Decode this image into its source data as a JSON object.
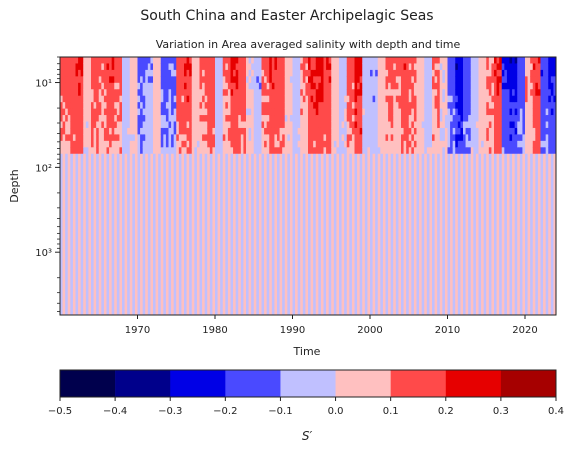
{
  "figure": {
    "suptitle": "South China and Easter Archipelagic Seas",
    "title": "Variation in Area averaged salinity with depth and time"
  },
  "chart_data": {
    "type": "heatmap",
    "title": "Variation in Area averaged salinity with depth and time",
    "xlabel": "Time",
    "ylabel": "Depth",
    "x_ticks": [
      1970,
      1980,
      1990,
      2000,
      2010,
      2020
    ],
    "xlim": [
      1960,
      2024
    ],
    "y_scale": "log",
    "y_inverted": true,
    "y_ticks": [
      10,
      100,
      1000
    ],
    "y_tick_labels": [
      "10¹",
      "10²",
      "10³"
    ],
    "ylim": [
      5,
      5500
    ],
    "colorbar": {
      "label": "S′",
      "boundaries": [
        -0.5,
        -0.4,
        -0.3,
        -0.2,
        -0.1,
        0.0,
        0.1,
        0.2,
        0.3,
        0.4
      ],
      "tick_labels": [
        "−0.5",
        "−0.4",
        "−0.3",
        "−0.2",
        "−0.1",
        "0.0",
        "0.1",
        "0.2",
        "0.3",
        "0.4"
      ],
      "colors": [
        "#00004d",
        "#00008b",
        "#0000e6",
        "#4a4aff",
        "#c0c0ff",
        "#ffc0c0",
        "#ff4a4a",
        "#e60000",
        "#a60000"
      ]
    },
    "levels": [
      {
        "range": [
          -0.5,
          -0.4
        ],
        "color": "#00004d"
      },
      {
        "range": [
          -0.4,
          -0.3
        ],
        "color": "#00008b"
      },
      {
        "range": [
          -0.3,
          -0.2
        ],
        "color": "#0000e6"
      },
      {
        "range": [
          -0.2,
          -0.1
        ],
        "color": "#4a4aff"
      },
      {
        "range": [
          -0.1,
          0.0
        ],
        "color": "#c0c0ff"
      },
      {
        "range": [
          0.0,
          0.1
        ],
        "color": "#ffc0c0"
      },
      {
        "range": [
          0.1,
          0.2
        ],
        "color": "#ff4a4a"
      },
      {
        "range": [
          0.2,
          0.3
        ],
        "color": "#e60000"
      },
      {
        "range": [
          0.3,
          0.4
        ],
        "color": "#a60000"
      }
    ],
    "surface_anomaly_by_year": [
      {
        "year": 1960,
        "value": 0.15
      },
      {
        "year": 1961,
        "value": 0.18
      },
      {
        "year": 1962,
        "value": 0.22
      },
      {
        "year": 1963,
        "value": 0.05
      },
      {
        "year": 1964,
        "value": 0.16
      },
      {
        "year": 1965,
        "value": 0.12
      },
      {
        "year": 1966,
        "value": 0.2
      },
      {
        "year": 1967,
        "value": 0.14
      },
      {
        "year": 1968,
        "value": -0.05
      },
      {
        "year": 1969,
        "value": 0.05
      },
      {
        "year": 1970,
        "value": -0.15
      },
      {
        "year": 1971,
        "value": -0.08
      },
      {
        "year": 1972,
        "value": 0.06
      },
      {
        "year": 1973,
        "value": -0.15
      },
      {
        "year": 1974,
        "value": -0.12
      },
      {
        "year": 1975,
        "value": 0.15
      },
      {
        "year": 1976,
        "value": 0.2
      },
      {
        "year": 1977,
        "value": 0.05
      },
      {
        "year": 1978,
        "value": 0.12
      },
      {
        "year": 1979,
        "value": 0.18
      },
      {
        "year": 1980,
        "value": -0.05
      },
      {
        "year": 1981,
        "value": 0.12
      },
      {
        "year": 1982,
        "value": 0.22
      },
      {
        "year": 1983,
        "value": 0.18
      },
      {
        "year": 1984,
        "value": 0.02
      },
      {
        "year": 1985,
        "value": -0.08
      },
      {
        "year": 1986,
        "value": 0.14
      },
      {
        "year": 1987,
        "value": 0.22
      },
      {
        "year": 1988,
        "value": 0.18
      },
      {
        "year": 1989,
        "value": 0.04
      },
      {
        "year": 1990,
        "value": -0.05
      },
      {
        "year": 1991,
        "value": 0.1
      },
      {
        "year": 1992,
        "value": 0.22
      },
      {
        "year": 1993,
        "value": 0.25
      },
      {
        "year": 1994,
        "value": 0.2
      },
      {
        "year": 1995,
        "value": 0.05
      },
      {
        "year": 1996,
        "value": -0.04
      },
      {
        "year": 1997,
        "value": 0.15
      },
      {
        "year": 1998,
        "value": 0.25
      },
      {
        "year": 1999,
        "value": -0.05
      },
      {
        "year": 2000,
        "value": -0.08
      },
      {
        "year": 2001,
        "value": 0.05
      },
      {
        "year": 2002,
        "value": 0.14
      },
      {
        "year": 2003,
        "value": 0.12
      },
      {
        "year": 2004,
        "value": 0.18
      },
      {
        "year": 2005,
        "value": 0.14
      },
      {
        "year": 2006,
        "value": 0.05
      },
      {
        "year": 2007,
        "value": -0.05
      },
      {
        "year": 2008,
        "value": 0.12
      },
      {
        "year": 2009,
        "value": 0.02
      },
      {
        "year": 2010,
        "value": -0.15
      },
      {
        "year": 2011,
        "value": -0.28
      },
      {
        "year": 2012,
        "value": -0.18
      },
      {
        "year": 2013,
        "value": -0.05
      },
      {
        "year": 2014,
        "value": 0.05
      },
      {
        "year": 2015,
        "value": 0.12
      },
      {
        "year": 2016,
        "value": 0.22
      },
      {
        "year": 2017,
        "value": -0.22
      },
      {
        "year": 2018,
        "value": -0.28
      },
      {
        "year": 2019,
        "value": -0.15
      },
      {
        "year": 2020,
        "value": 0.1
      },
      {
        "year": 2021,
        "value": 0.2
      },
      {
        "year": 2022,
        "value": -0.18
      },
      {
        "year": 2023,
        "value": -0.25
      }
    ]
  }
}
